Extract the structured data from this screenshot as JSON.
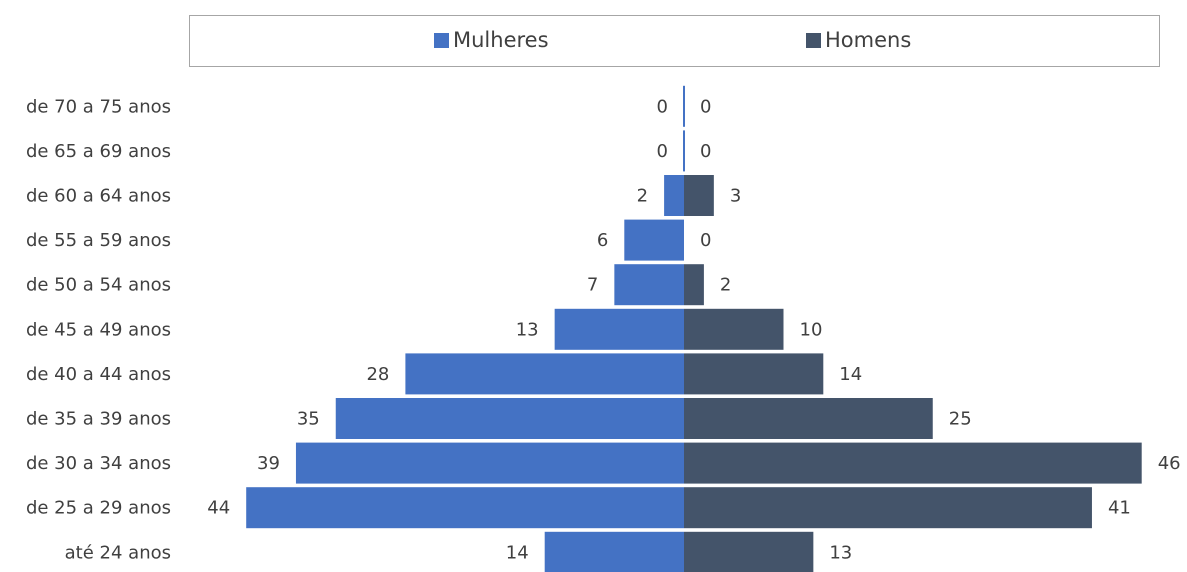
{
  "chart_data": {
    "type": "bar",
    "orientation": "horizontal",
    "categories": [
      "até 24 anos",
      "de 25 a 29 anos",
      "de 30 a 34 anos",
      "de 35 a 39 anos",
      "de 40 a 44 anos",
      "de 45 a 49 anos",
      "de 50 a 54 anos",
      "de 55 a 59 anos",
      "de 60 a 64 anos",
      "de 65 a 69 anos",
      "de 70 a 75 anos"
    ],
    "series": [
      {
        "name": "Mulheres",
        "color": "#4472c4",
        "values": [
          14,
          44,
          39,
          35,
          28,
          13,
          7,
          6,
          2,
          0,
          0
        ]
      },
      {
        "name": "Homens",
        "color": "#44546a",
        "values": [
          13,
          41,
          46,
          25,
          14,
          10,
          2,
          0,
          3,
          0,
          0
        ]
      }
    ],
    "legend_position": "top",
    "grid": false
  }
}
